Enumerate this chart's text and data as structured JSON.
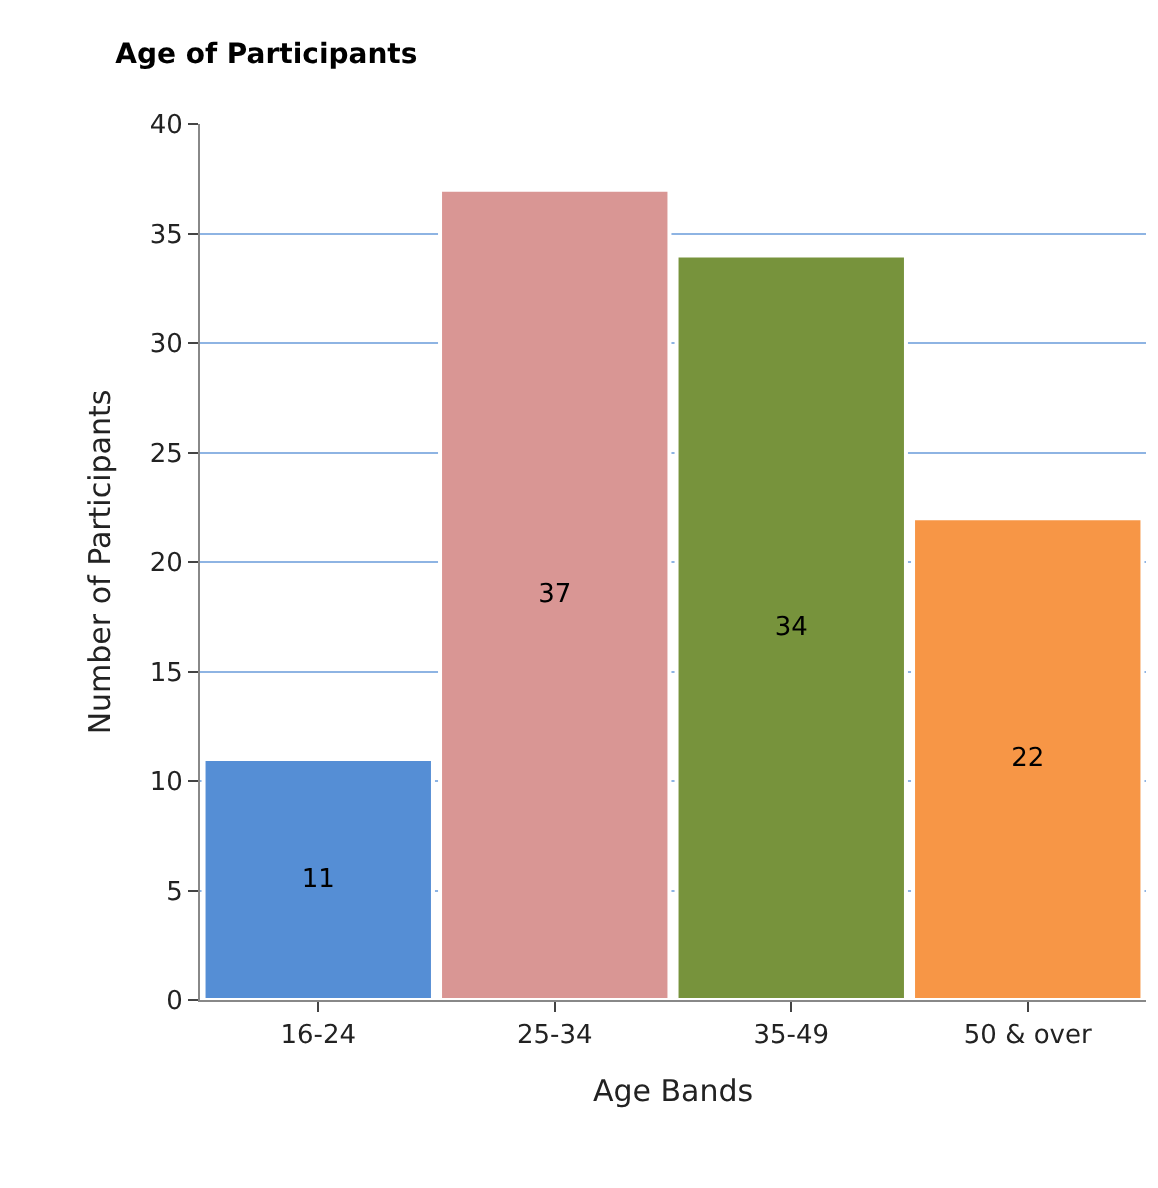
{
  "chart_data": {
    "type": "bar",
    "title": "Age of Participants",
    "xlabel": "Age Bands",
    "ylabel": "Number of Participants",
    "categories": [
      "16-24",
      "25-34",
      "35-49",
      "50 & over"
    ],
    "values": [
      11,
      37,
      34,
      22
    ],
    "colors": [
      "#558ed5",
      "#d99694",
      "#77933c",
      "#f79646"
    ],
    "ylim": [
      0,
      40
    ],
    "yticks": [
      0,
      5,
      10,
      15,
      20,
      25,
      30,
      35,
      40
    ],
    "grid": "y",
    "data_labels": true,
    "legend": false
  }
}
